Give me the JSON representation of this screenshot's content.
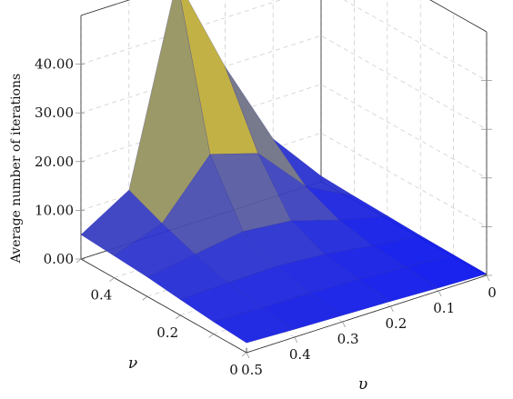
{
  "chart_data": {
    "type": "surface3d",
    "title": "",
    "zlabel": "Average number of iterations",
    "xlabel": "υ",
    "ylabel": "ν",
    "x": [
      0,
      0.1,
      0.2,
      0.3,
      0.4,
      0.5
    ],
    "y": [
      0,
      0.1,
      0.2,
      0.3,
      0.4,
      0.5
    ],
    "x_tick_labels": [
      "0",
      "0.1",
      "0.2",
      "0.3",
      "0.4",
      "0.5"
    ],
    "y_tick_labels": [
      "0",
      "0.2",
      "0.4"
    ],
    "z_tick_labels": [
      "0.00",
      "10.00",
      "20.00",
      "30.00",
      "40.00"
    ],
    "zlim": [
      0,
      50
    ],
    "z": [
      [
        0.3,
        0.4,
        0.5,
        0.7,
        0.9,
        1.2
      ],
      [
        0.6,
        1.0,
        1.6,
        3.0,
        6.0,
        12.0
      ],
      [
        1.0,
        1.7,
        3.0,
        6.0,
        16.0,
        30.0
      ],
      [
        1.3,
        2.0,
        3.7,
        7.0,
        19.0,
        51.0
      ],
      [
        1.6,
        2.2,
        3.5,
        5.5,
        8.0,
        11.0
      ],
      [
        2.0,
        2.5,
        3.2,
        4.0,
        4.5,
        5.0
      ]
    ],
    "colors": {
      "low": "#0a14f0",
      "mid": "#8a8a6c",
      "high": "#ffd700"
    },
    "grid": true
  }
}
